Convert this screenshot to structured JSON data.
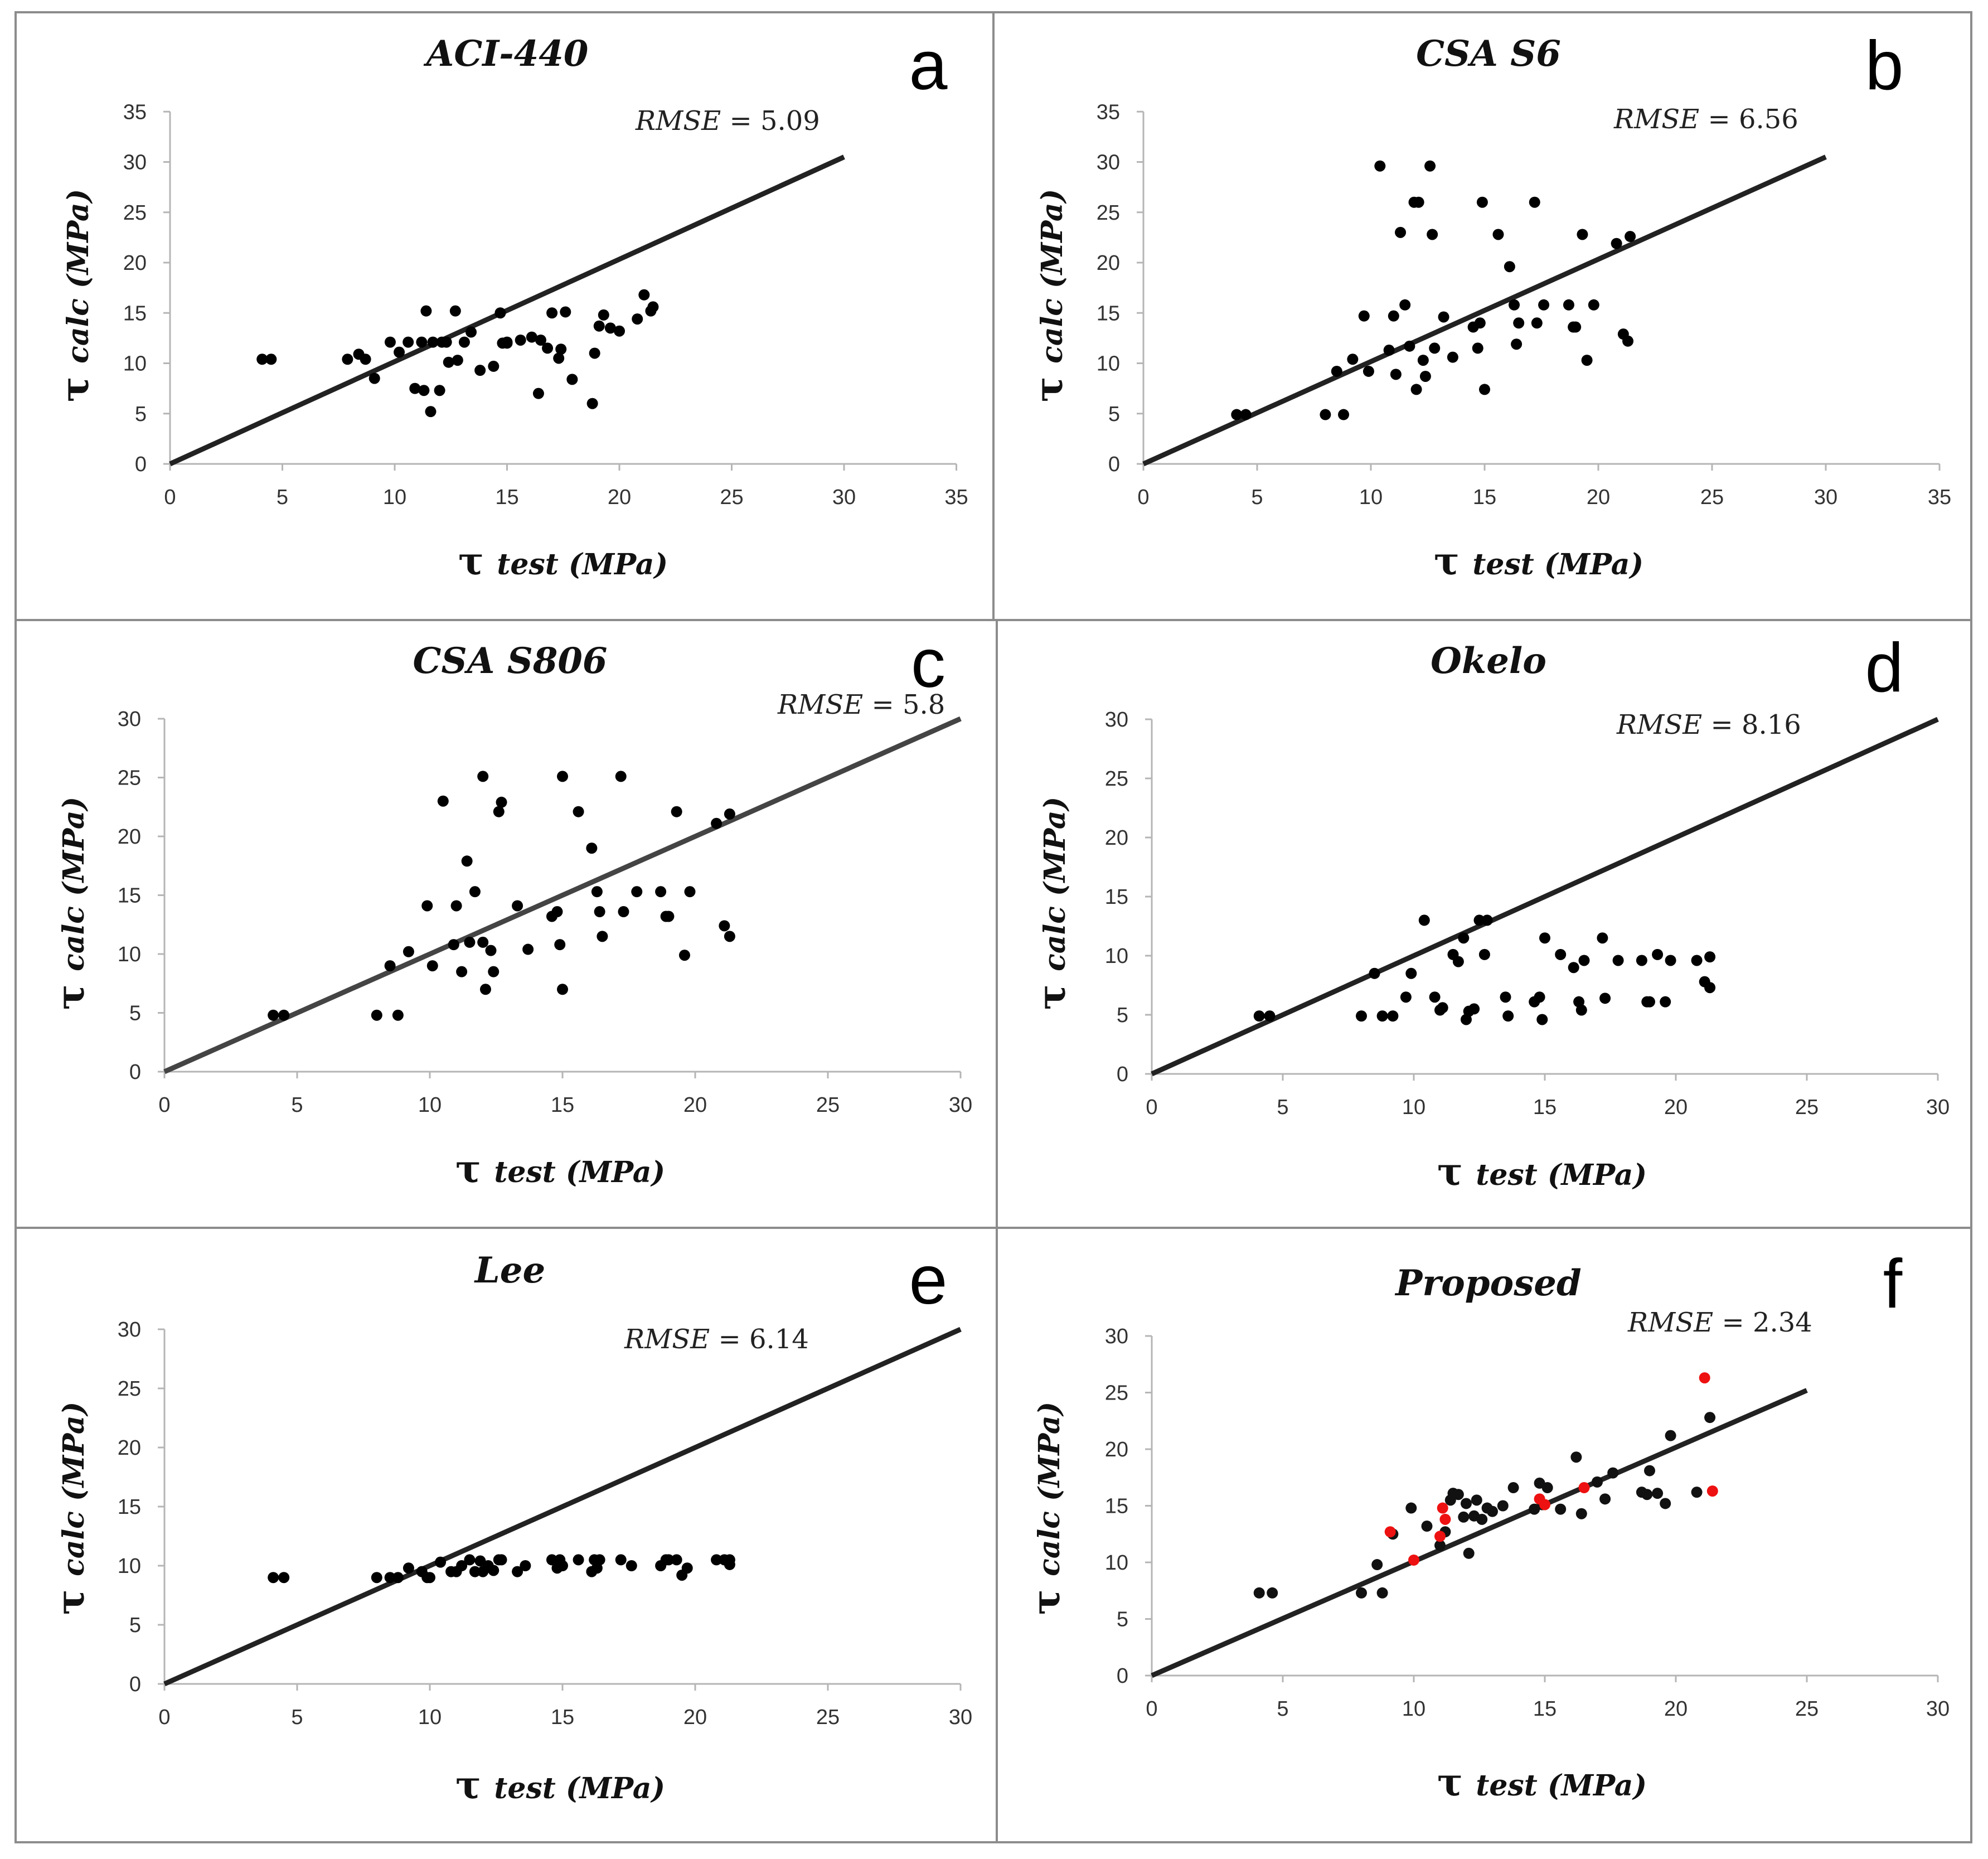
{
  "chart_data": [
    {
      "type": "scatter",
      "panel_letter": "a",
      "title": "ACI-440",
      "rmse_label": "RMSE",
      "rmse_value": "5.09",
      "tau_symbol": "τ",
      "xlabel": "test (MPa)",
      "ylabel": "calc (MPa)",
      "xlim": [
        0,
        35
      ],
      "ylim": [
        0,
        35
      ],
      "xticks": [
        "0",
        "5",
        "10",
        "15",
        "20",
        "25",
        "30",
        "35"
      ],
      "yticks": [
        "0",
        "5",
        "10",
        "15",
        "20",
        "25",
        "30",
        "35"
      ],
      "line": {
        "x": [
          0,
          30
        ],
        "y": [
          0,
          30.5
        ],
        "color": "#222222"
      },
      "series": [
        {
          "name": "data",
          "color": "#000000",
          "x": [
            4.1,
            4.5,
            7.9,
            8.4,
            8.7,
            9.1,
            9.8,
            10.2,
            10.6,
            10.9,
            11.2,
            11.3,
            11.4,
            11.6,
            11.7,
            12.0,
            12.1,
            12.3,
            12.4,
            12.7,
            12.8,
            13.1,
            13.4,
            13.8,
            14.4,
            14.7,
            14.8,
            15.0,
            15.0,
            15.6,
            16.1,
            16.4,
            16.5,
            16.8,
            17.0,
            17.3,
            17.4,
            17.6,
            17.9,
            18.8,
            18.9,
            19.1,
            19.3,
            19.6,
            20.0,
            20.8,
            21.1,
            21.4,
            21.5
          ],
          "y": [
            10.4,
            10.4,
            10.4,
            10.9,
            10.4,
            8.5,
            12.1,
            11.1,
            12.1,
            7.5,
            12.1,
            7.3,
            15.2,
            5.2,
            12.1,
            7.3,
            12.1,
            12.1,
            10.1,
            15.2,
            10.3,
            12.1,
            13.1,
            9.3,
            9.7,
            15.0,
            12.0,
            12.0,
            12.1,
            12.3,
            12.6,
            7.0,
            12.3,
            11.5,
            15.0,
            10.5,
            11.4,
            15.1,
            8.4,
            6.0,
            11.0,
            13.7,
            14.8,
            13.5,
            13.2,
            14.4,
            16.8,
            15.2,
            15.6
          ]
        }
      ]
    },
    {
      "type": "scatter",
      "panel_letter": "b",
      "title": "CSA S6",
      "rmse_label": "RMSE",
      "rmse_value": "6.56",
      "tau_symbol": "τ",
      "xlabel": "test (MPa)",
      "ylabel": "calc (MPa)",
      "xlim": [
        0,
        35
      ],
      "ylim": [
        0,
        35
      ],
      "xticks": [
        "0",
        "5",
        "10",
        "15",
        "20",
        "25",
        "30",
        "35"
      ],
      "yticks": [
        "0",
        "5",
        "10",
        "15",
        "20",
        "25",
        "30",
        "35"
      ],
      "line": {
        "x": [
          0,
          30
        ],
        "y": [
          0,
          30.5
        ],
        "color": "#222222"
      },
      "series": [
        {
          "name": "data",
          "color": "#000000",
          "x": [
            4.1,
            4.5,
            8.0,
            8.5,
            8.8,
            9.2,
            9.7,
            9.9,
            10.4,
            10.8,
            11.0,
            11.1,
            11.3,
            11.5,
            11.7,
            11.9,
            12.0,
            12.1,
            12.3,
            12.4,
            12.6,
            12.7,
            12.8,
            13.2,
            13.6,
            14.5,
            14.7,
            14.8,
            14.9,
            15.0,
            15.6,
            16.1,
            16.3,
            16.4,
            16.5,
            17.2,
            17.3,
            17.6,
            18.7,
            18.9,
            19.0,
            19.3,
            19.5,
            19.8,
            20.8,
            21.1,
            21.3,
            21.4
          ],
          "y": [
            4.9,
            4.9,
            4.9,
            9.2,
            4.9,
            10.4,
            14.7,
            9.2,
            29.6,
            11.3,
            14.7,
            8.9,
            23.0,
            15.8,
            11.7,
            26.0,
            7.4,
            26.0,
            10.3,
            8.7,
            29.6,
            22.8,
            11.5,
            14.6,
            10.6,
            13.6,
            11.5,
            14.0,
            26.0,
            7.4,
            22.8,
            19.6,
            15.8,
            11.9,
            14.0,
            26.0,
            14.0,
            15.8,
            15.8,
            13.6,
            13.6,
            22.8,
            10.3,
            15.8,
            21.9,
            12.9,
            12.2,
            22.6
          ]
        }
      ]
    },
    {
      "type": "scatter",
      "panel_letter": "c",
      "title": "CSA S806",
      "rmse_label": "RMSE",
      "rmse_value": "5.8",
      "tau_symbol": "τ",
      "xlabel": "test (MPa)",
      "ylabel": "calc (MPa)",
      "xlim": [
        0,
        30
      ],
      "ylim": [
        0,
        30
      ],
      "xticks": [
        "0",
        "5",
        "10",
        "15",
        "20",
        "25",
        "30"
      ],
      "yticks": [
        "0",
        "5",
        "10",
        "15",
        "20",
        "25",
        "30"
      ],
      "line": {
        "x": [
          0,
          30
        ],
        "y": [
          0,
          30
        ],
        "color": "#444444"
      },
      "series": [
        {
          "name": "data",
          "color": "#000000",
          "x": [
            4.1,
            4.5,
            8.0,
            8.5,
            8.8,
            9.2,
            9.9,
            10.1,
            10.5,
            10.9,
            11.0,
            11.2,
            11.4,
            11.5,
            11.7,
            12.0,
            12.0,
            12.1,
            12.3,
            12.4,
            12.6,
            12.7,
            13.3,
            13.7,
            14.6,
            14.8,
            14.9,
            15.0,
            15.0,
            15.6,
            16.1,
            16.3,
            16.4,
            16.5,
            17.2,
            17.3,
            17.8,
            18.7,
            18.9,
            19.0,
            19.3,
            19.6,
            19.8,
            20.8,
            21.1,
            21.3,
            21.3
          ],
          "y": [
            4.8,
            4.8,
            4.8,
            9.0,
            4.8,
            10.2,
            14.1,
            9.0,
            23.0,
            10.8,
            14.1,
            8.5,
            17.9,
            11.0,
            15.3,
            11.0,
            25.1,
            7.0,
            10.3,
            8.5,
            22.1,
            22.9,
            14.1,
            10.4,
            13.2,
            13.6,
            10.8,
            25.1,
            7.0,
            22.1,
            19.0,
            15.3,
            13.6,
            11.5,
            25.1,
            13.6,
            15.3,
            15.3,
            13.2,
            13.2,
            22.1,
            9.9,
            15.3,
            21.1,
            12.4,
            11.5,
            21.9
          ]
        }
      ]
    },
    {
      "type": "scatter",
      "panel_letter": "d",
      "title": "Okelo",
      "rmse_label": "RMSE",
      "rmse_value": "8.16",
      "tau_symbol": "τ",
      "xlabel": "test (MPa)",
      "ylabel": "calc (MPa)",
      "xlim": [
        0,
        30
      ],
      "ylim": [
        0,
        30
      ],
      "xticks": [
        "0",
        "5",
        "10",
        "15",
        "20",
        "25",
        "30"
      ],
      "yticks": [
        "0",
        "5",
        "10",
        "15",
        "20",
        "25",
        "30"
      ],
      "line": {
        "x": [
          0,
          30
        ],
        "y": [
          0,
          30
        ],
        "color": "#222222"
      },
      "series": [
        {
          "name": "data",
          "color": "#000000",
          "x": [
            4.1,
            4.5,
            8.0,
            8.5,
            8.8,
            9.2,
            9.7,
            9.9,
            10.4,
            10.8,
            11.0,
            11.1,
            11.5,
            11.7,
            11.9,
            12.0,
            12.1,
            12.3,
            12.5,
            12.7,
            12.8,
            13.5,
            13.6,
            14.6,
            14.8,
            14.9,
            15.0,
            15.6,
            16.1,
            16.3,
            16.4,
            16.5,
            17.2,
            17.3,
            17.8,
            18.7,
            18.9,
            19.0,
            19.3,
            19.6,
            19.8,
            20.8,
            21.1,
            21.3,
            21.3
          ],
          "y": [
            4.9,
            4.9,
            4.9,
            8.5,
            4.9,
            4.9,
            6.5,
            8.5,
            13.0,
            6.5,
            5.4,
            5.6,
            10.1,
            9.5,
            11.5,
            4.6,
            5.3,
            5.5,
            13.0,
            10.1,
            13.0,
            6.5,
            4.9,
            6.1,
            6.5,
            4.6,
            11.5,
            10.1,
            9.0,
            6.1,
            5.4,
            9.6,
            11.5,
            6.4,
            9.6,
            9.6,
            6.1,
            6.1,
            10.1,
            6.1,
            9.6,
            9.6,
            7.8,
            7.3,
            9.9
          ]
        }
      ]
    },
    {
      "type": "scatter",
      "panel_letter": "e",
      "title": "Lee",
      "rmse_label": "RMSE",
      "rmse_value": "6.14",
      "tau_symbol": "τ",
      "xlabel": "test (MPa)",
      "ylabel": "calc (MPa)",
      "xlim": [
        0,
        30
      ],
      "ylim": [
        0,
        30
      ],
      "xticks": [
        "0",
        "5",
        "10",
        "15",
        "20",
        "25",
        "30"
      ],
      "yticks": [
        "0",
        "5",
        "10",
        "15",
        "20",
        "25",
        "30"
      ],
      "line": {
        "x": [
          0,
          30
        ],
        "y": [
          0,
          30
        ],
        "color": "#222222"
      },
      "series": [
        {
          "name": "data",
          "color": "#000000",
          "x": [
            4.1,
            4.5,
            8.0,
            8.5,
            8.8,
            9.2,
            9.7,
            9.9,
            10.0,
            10.4,
            10.8,
            11.0,
            11.2,
            11.5,
            11.7,
            11.9,
            12.0,
            12.2,
            12.4,
            12.6,
            12.7,
            13.3,
            13.6,
            14.6,
            14.8,
            14.9,
            15.0,
            15.6,
            16.1,
            16.2,
            16.3,
            16.4,
            17.2,
            17.6,
            18.7,
            18.9,
            19.0,
            19.3,
            19.5,
            19.7,
            20.8,
            21.1,
            21.3,
            21.3
          ],
          "y": [
            9.0,
            9.0,
            9.0,
            9.0,
            9.0,
            9.8,
            9.5,
            9.0,
            9.0,
            10.3,
            9.5,
            9.5,
            10.0,
            10.5,
            9.5,
            10.4,
            9.5,
            10.0,
            9.6,
            10.5,
            10.5,
            9.5,
            10.0,
            10.5,
            9.8,
            10.5,
            10.0,
            10.5,
            9.5,
            10.5,
            9.8,
            10.5,
            10.5,
            10.0,
            10.0,
            10.5,
            10.5,
            10.5,
            9.2,
            9.8,
            10.5,
            10.5,
            10.5,
            10.1
          ]
        }
      ]
    },
    {
      "type": "scatter",
      "panel_letter": "f",
      "title": "Proposed",
      "rmse_label": "RMSE",
      "rmse_value": "2.34",
      "tau_symbol": "τ",
      "xlabel": "test (MPa)",
      "ylabel": "calc (MPa)",
      "xlim": [
        0,
        30
      ],
      "ylim": [
        0,
        30
      ],
      "xticks": [
        "0",
        "5",
        "10",
        "15",
        "20",
        "25",
        "30"
      ],
      "yticks": [
        "0",
        "5",
        "10",
        "15",
        "20",
        "25",
        "30"
      ],
      "line": {
        "x": [
          0,
          25
        ],
        "y": [
          0,
          25.2
        ],
        "color": "#222222"
      },
      "series": [
        {
          "name": "black",
          "color": "#111111",
          "x": [
            4.1,
            4.6,
            8.0,
            8.6,
            8.8,
            9.2,
            9.9,
            10.5,
            11.0,
            11.2,
            11.4,
            11.5,
            11.7,
            11.9,
            12.0,
            12.1,
            12.3,
            12.4,
            12.6,
            12.8,
            13.0,
            13.4,
            13.8,
            14.6,
            14.8,
            14.9,
            15.1,
            15.6,
            16.2,
            16.4,
            17.0,
            17.3,
            17.6,
            18.7,
            18.9,
            19.0,
            19.3,
            19.6,
            19.8,
            20.8,
            21.3
          ],
          "y": [
            7.3,
            7.3,
            7.3,
            9.8,
            7.3,
            12.5,
            14.8,
            13.2,
            11.5,
            12.7,
            15.5,
            16.1,
            16.0,
            14.0,
            15.2,
            10.8,
            14.1,
            15.5,
            13.8,
            14.8,
            14.5,
            15.0,
            16.6,
            14.7,
            17.0,
            15.1,
            16.6,
            14.7,
            19.3,
            14.3,
            17.1,
            15.6,
            17.9,
            16.2,
            16.0,
            18.1,
            16.1,
            15.2,
            21.2,
            16.2,
            22.8
          ]
        },
        {
          "name": "red",
          "color": "#ee1111",
          "x": [
            9.1,
            10.0,
            11.0,
            11.1,
            11.2,
            14.8,
            15.0,
            16.5,
            21.1,
            21.4
          ],
          "y": [
            12.7,
            10.2,
            12.3,
            14.8,
            13.8,
            15.6,
            15.1,
            16.6,
            26.3,
            16.3
          ]
        }
      ]
    }
  ]
}
